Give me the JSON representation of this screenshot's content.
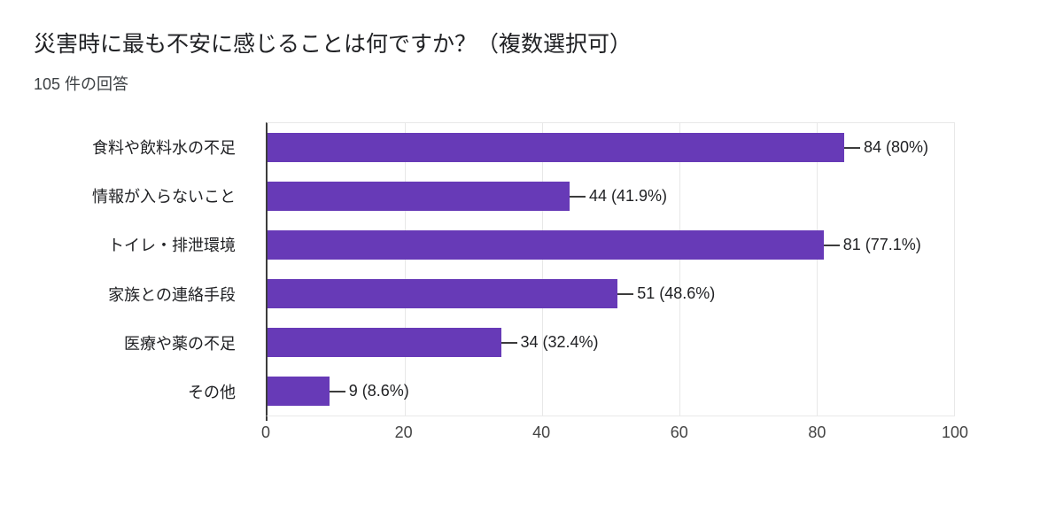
{
  "chart_data": {
    "type": "bar",
    "orientation": "horizontal",
    "title": "災害時に最も不安に感じることは何ですか？（複数選択可）",
    "subtitle": "105 件の回答",
    "total_responses": 105,
    "categories": [
      "食料や飲料水の不足",
      "情報が入らないこと",
      "トイレ・排泄環境",
      "家族との連絡手段",
      "医療や薬の不足",
      "その他"
    ],
    "values": [
      84,
      44,
      81,
      51,
      34,
      9
    ],
    "value_labels": [
      "84 (80%)",
      "44 (41.9%)",
      "81 (77.1%)",
      "51 (48.6%)",
      "34 (32.4%)",
      "9 (8.6%)"
    ],
    "xlim": [
      0,
      100
    ],
    "x_ticks": [
      0,
      20,
      40,
      60,
      80,
      100
    ],
    "grid": true,
    "legend": "none",
    "bar_color": "#673ab7",
    "axis_color": "#3c3c3c",
    "gridline_color": "#e8e8e8",
    "text_color": "#202124"
  }
}
